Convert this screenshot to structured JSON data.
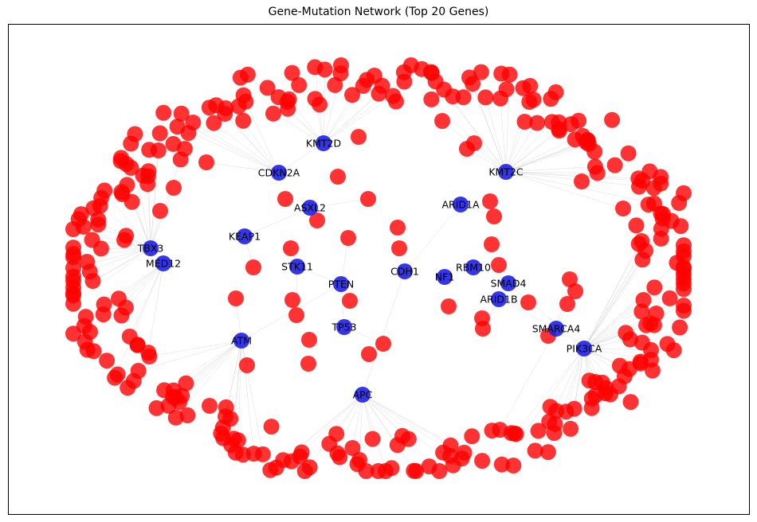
{
  "title": "Gene-Mutation Network (Top 20 Genes)",
  "colors": {
    "gene": "#1f1fe8",
    "mutation": "#ff0000",
    "edge": "#c8c8c8",
    "frame": "#000000"
  },
  "genes": [
    "KMT2D",
    "CDKN2A",
    "KMT2C",
    "ASXL2",
    "ARID1A",
    "KEAP1",
    "TBX3",
    "MED12",
    "STK11",
    "CDH1",
    "NF1",
    "RBM10",
    "PTEN",
    "SMAD4",
    "ARID1B",
    "TP53",
    "SMARCA4",
    "ATM",
    "PIK3CA",
    "APC"
  ],
  "mutation_count": 341
}
